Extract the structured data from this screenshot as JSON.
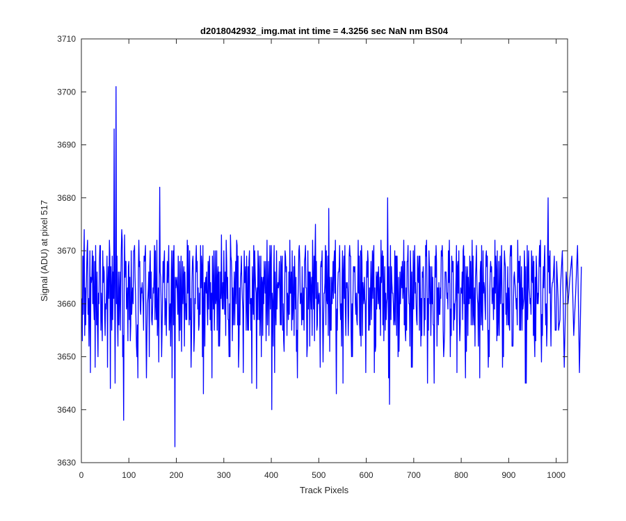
{
  "chart_data": {
    "type": "line",
    "title": "d2018042932_img.mat int time = 4.3256 sec  NaN nm BS04",
    "xlabel": "Track Pixels",
    "ylabel": "Signal (ADU) at pixel 517",
    "xlim": [
      0,
      1024
    ],
    "ylim": [
      3630,
      3710
    ],
    "x_ticks": [
      0,
      100,
      200,
      300,
      400,
      500,
      600,
      700,
      800,
      900,
      1000
    ],
    "y_ticks": [
      3630,
      3640,
      3650,
      3660,
      3670,
      3680,
      3690,
      3700,
      3710
    ],
    "grid": false,
    "legend": "none",
    "series": [
      {
        "color": "#0000ff",
        "x_start": 1,
        "x_step": 4,
        "values": [
          3661,
          3668,
          3656,
          3672,
          3659,
          3664,
          3669,
          3648,
          3666,
          3660,
          3655,
          3670,
          3658,
          3663,
          3667,
          3644,
          3669,
          3693,
          3701,
          3652,
          3666,
          3674,
          3638,
          3668,
          3663,
          3657,
          3670,
          3660,
          3665,
          3650,
          3672,
          3658,
          3662,
          3668,
          3646,
          3663,
          3670,
          3656,
          3665,
          3660,
          3658,
          3682,
          3650,
          3664,
          3661,
          3668,
          3655,
          3662,
          3670,
          3633,
          3665,
          3659,
          3663,
          3668,
          3652,
          3660,
          3671,
          3657,
          3664,
          3651,
          3668,
          3659,
          3662,
          3669,
          3643,
          3664,
          3660,
          3667,
          3655,
          3663,
          3661,
          3670,
          3652,
          3666,
          3659,
          3663,
          3672,
          3657,
          3650,
          3665,
          3660,
          3668,
          3656,
          3663,
          3669,
          3647,
          3664,
          3660,
          3668,
          3655,
          3662,
          3670,
          3644,
          3666,
          3659,
          3664,
          3668,
          3653,
          3662,
          3671,
          3640,
          3665,
          3659,
          3663,
          3668,
          3656,
          3660,
          3670,
          3654,
          3666,
          3662,
          3657,
          3669,
          3651,
          3664,
          3660,
          3667,
          3655,
          3663,
          3670,
          3652,
          3665,
          3659,
          3675,
          3656,
          3662,
          3668,
          3649,
          3664,
          3661,
          3678,
          3655,
          3663,
          3670,
          3643,
          3666,
          3660,
          3664,
          3669,
          3654,
          3662,
          3671,
          3650,
          3667,
          3660,
          3656,
          3669,
          3652,
          3664,
          3661,
          3668,
          3655,
          3663,
          3670,
          3647,
          3666,
          3660,
          3665,
          3668,
          3653,
          3662,
          3680,
          3641,
          3667,
          3660,
          3656,
          3669,
          3651,
          3664,
          3661,
          3668,
          3655,
          3663,
          3670,
          3648,
          3666,
          3660,
          3665,
          3669,
          3654,
          3662,
          3671,
          3645,
          3667,
          3660,
          3656,
          3669,
          3652,
          3664,
          3661,
          3668,
          3655,
          3663,
          3670,
          3650,
          3666,
          3660,
          3665,
          3668,
          3653,
          3662,
          3671,
          3646,
          3667,
          3660,
          3656,
          3669,
          3652,
          3664,
          3661,
          3668,
          3655,
          3663,
          3670,
          3648,
          3666,
          3660,
          3665,
          3669,
          3654,
          3662,
          3671,
          3650,
          3667,
          3660,
          3656,
          3669,
          3652,
          3664,
          3661,
          3668,
          3655,
          3663,
          3670,
          3645,
          3666,
          3660,
          3665,
          3668,
          3653,
          3662,
          3671,
          3649,
          3667,
          3660,
          3656,
          3669,
          3652,
          3664,
          3661,
          3668,
          3655,
          3663,
          3670,
          3648,
          3666,
          3660,
          3665,
          3669,
          3654,
          3662,
          3671,
          3647,
          3667
        ]
      },
      {
        "color": "#0000ff",
        "x_start": 2,
        "x_step": 4,
        "values": [
          3653,
          3674,
          3662,
          3658,
          3670,
          3665,
          3660,
          3671,
          3655,
          3668,
          3662,
          3664,
          3654,
          3669,
          3661,
          3667,
          3657,
          3664,
          3660,
          3666,
          3655,
          3672,
          3661,
          3668,
          3653,
          3665,
          3658,
          3670,
          3662,
          3656,
          3667,
          3663,
          3660,
          3669,
          3654,
          3666,
          3661,
          3659,
          3671,
          3657,
          3663,
          3666,
          3655,
          3668,
          3660,
          3664,
          3658,
          3670,
          3656,
          3665,
          3662,
          3653,
          3669,
          3660,
          3666,
          3657,
          3664,
          3661,
          3668,
          3654,
          3671,
          3663,
          3658,
          3667,
          3660,
          3665,
          3656,
          3669,
          3662,
          3659,
          3670,
          3655,
          3666,
          3661,
          3664,
          3658,
          3668,
          3657,
          3673,
          3653,
          3666,
          3660,
          3669,
          3656,
          3664,
          3662,
          3667,
          3655,
          3670,
          3661,
          3658,
          3666,
          3663,
          3657,
          3669,
          3654,
          3665,
          3660,
          3668,
          3659,
          3662,
          3671,
          3656,
          3664,
          3661,
          3667,
          3653,
          3669,
          3662,
          3658,
          3666,
          3660,
          3664,
          3655,
          3670,
          3661,
          3657,
          3668,
          3663,
          3659,
          3666,
          3654,
          3669,
          3661,
          3664,
          3658,
          3667,
          3656,
          3671,
          3660,
          3663,
          3655,
          3668,
          3662,
          3659,
          3666,
          3657,
          3670,
          3661,
          3664,
          3654,
          3669,
          3660,
          3667,
          3658,
          3663,
          3656,
          3671,
          3662,
          3660,
          3665,
          3655,
          3668,
          3661,
          3663,
          3659,
          3667,
          3654,
          3670,
          3662,
          3657,
          3666,
          3660,
          3664,
          3656,
          3669,
          3661,
          3658,
          3667,
          3663,
          3655,
          3668,
          3660,
          3665,
          3659,
          3671,
          3657,
          3664,
          3662,
          3666,
          3654,
          3669,
          3661,
          3660,
          3667,
          3656,
          3665,
          3663,
          3658,
          3670,
          3655,
          3666,
          3661,
          3664,
          3659,
          3668,
          3657,
          3671,
          3662,
          3656,
          3666,
          3660,
          3667,
          3654,
          3669,
          3663,
          3658,
          3665,
          3661,
          3664,
          3656,
          3670,
          3660,
          3667,
          3655,
          3668,
          3662,
          3659,
          3666,
          3657,
          3669,
          3661,
          3664,
          3658,
          3667,
          3655,
          3671,
          3660,
          3663,
          3656,
          3668,
          3662,
          3659,
          3666,
          3657,
          3670,
          3661,
          3664,
          3654,
          3669,
          3660,
          3667,
          3658,
          3663,
          3656,
          3671,
          3662,
          3660,
          3665,
          3655
        ]
      },
      {
        "color": "#0000ff",
        "x_start": 3,
        "x_step": 4,
        "values": [
          3669,
          3654,
          3666,
          3661,
          3647,
          3670,
          3657,
          3663,
          3650,
          3671,
          3658,
          3667,
          3660,
          3648,
          3672,
          3662,
          3666,
          3645,
          3669,
          3656,
          3664,
          3650,
          3673,
          3659,
          3667,
          3653,
          3661,
          3670,
          3657,
          3646,
          3668,
          3662,
          3655,
          3671,
          3660,
          3650,
          3666,
          3663,
          3657,
          3672,
          3649,
          3665,
          3661,
          3670,
          3654,
          3667,
          3660,
          3646,
          3671,
          3663,
          3658,
          3668,
          3651,
          3665,
          3662,
          3672,
          3656,
          3648,
          3669,
          3661,
          3666,
          3655,
          3671,
          3650,
          3664,
          3662,
          3668,
          3657,
          3646,
          3670,
          3660,
          3665,
          3652,
          3673,
          3659,
          3666,
          3661,
          3650,
          3669,
          3663,
          3656,
          3672,
          3648,
          3665,
          3661,
          3670,
          3655,
          3667,
          3660,
          3645,
          3671,
          3663,
          3657,
          3669,
          3650,
          3665,
          3662,
          3672,
          3654,
          3668,
          3660,
          3647,
          3670,
          3663,
          3656,
          3669,
          3651,
          3666,
          3661,
          3672,
          3655,
          3667,
          3659,
          3646,
          3671,
          3662,
          3657,
          3669,
          3650,
          3666,
          3663,
          3672,
          3653,
          3668,
          3660,
          3648,
          3670,
          3662,
          3656,
          3669,
          3651,
          3665,
          3661,
          3672,
          3655,
          3667,
          3660,
          3645,
          3671,
          3663,
          3658,
          3669,
          3650,
          3666,
          3662,
          3672,
          3654,
          3668,
          3660,
          3647,
          3670,
          3663,
          3657,
          3669,
          3651,
          3665,
          3661,
          3672,
          3656,
          3667,
          3660,
          3646,
          3671,
          3662,
          3657,
          3669,
          3650,
          3666,
          3663,
          3672,
          3653,
          3668,
          3660,
          3648,
          3670,
          3662,
          3656,
          3669,
          3652,
          3665,
          3661,
          3672,
          3655,
          3667,
          3660,
          3645,
          3671,
          3663,
          3658,
          3669,
          3650,
          3666,
          3662,
          3672,
          3654,
          3668,
          3660,
          3647,
          3670,
          3663,
          3657,
          3669,
          3651,
          3665,
          3661,
          3672,
          3656,
          3667,
          3660,
          3646,
          3671,
          3662,
          3657,
          3669,
          3650,
          3666,
          3663,
          3672,
          3653,
          3668,
          3660,
          3648,
          3670,
          3662,
          3656,
          3669,
          3652,
          3665,
          3661,
          3672,
          3655,
          3667,
          3660,
          3645,
          3671,
          3663,
          3658,
          3669,
          3650,
          3666,
          3662,
          3672,
          3654,
          3668,
          3660,
          3680,
          3670,
          3663
        ]
      },
      {
        "color": "#0000ff",
        "x_start": 4,
        "x_step": 4,
        "values": [
          3658,
          3663,
          3670,
          3652,
          3665,
          3660,
          3668,
          3656,
          3662,
          3671,
          3653,
          3666,
          3659,
          3664,
          3669,
          3655,
          3661,
          3667,
          3657,
          3662,
          3670,
          3654,
          3665,
          3660,
          3668,
          3656,
          3663,
          3671,
          3652,
          3666,
          3659,
          3664,
          3669,
          3655,
          3661,
          3667,
          3657,
          3662,
          3670,
          3654,
          3665,
          3660,
          3668,
          3656,
          3663,
          3671,
          3652,
          3666,
          3659,
          3664,
          3669,
          3655,
          3661,
          3667,
          3657,
          3662,
          3670,
          3654,
          3665,
          3660,
          3668,
          3656,
          3663,
          3671,
          3652,
          3666,
          3659,
          3664,
          3669,
          3655,
          3661,
          3667,
          3657,
          3662,
          3670,
          3654,
          3665,
          3660,
          3668,
          3656,
          3663,
          3671,
          3652,
          3666,
          3659,
          3664,
          3669,
          3655,
          3661,
          3667,
          3657,
          3662,
          3670,
          3654,
          3665,
          3660,
          3668,
          3656,
          3663,
          3671,
          3652,
          3666,
          3659,
          3664,
          3669,
          3655,
          3661,
          3667,
          3657,
          3662,
          3670,
          3654,
          3665,
          3660,
          3668,
          3656,
          3663,
          3671,
          3652,
          3666,
          3659,
          3664,
          3669,
          3655,
          3661,
          3667,
          3657,
          3662,
          3670,
          3654,
          3665,
          3660,
          3668,
          3656,
          3663,
          3671,
          3652,
          3666,
          3659,
          3664,
          3669,
          3655,
          3661,
          3667,
          3657,
          3662,
          3670,
          3654,
          3665,
          3660,
          3668,
          3656,
          3663,
          3671,
          3652,
          3666,
          3659,
          3664,
          3669,
          3655,
          3661,
          3667,
          3657,
          3662,
          3670,
          3654,
          3665,
          3660,
          3668,
          3656,
          3663,
          3671,
          3652,
          3666,
          3659,
          3664,
          3669,
          3655,
          3661,
          3667,
          3657,
          3662,
          3670,
          3654,
          3665,
          3660,
          3668,
          3656,
          3663,
          3671,
          3652,
          3666,
          3659,
          3664,
          3669,
          3655,
          3661,
          3667,
          3657,
          3662,
          3670,
          3654,
          3665,
          3660,
          3668,
          3656,
          3663,
          3671,
          3652,
          3666,
          3659,
          3664,
          3669,
          3655,
          3661,
          3667,
          3657,
          3662,
          3670,
          3654,
          3665,
          3660,
          3668,
          3656,
          3663,
          3671,
          3652,
          3666,
          3659,
          3664,
          3669,
          3655,
          3661,
          3667,
          3657,
          3662,
          3670,
          3654,
          3665,
          3660,
          3668,
          3656,
          3663,
          3671,
          3652,
          3666,
          3659,
          3664,
          3669,
          3655,
          3661,
          3657
        ]
      }
    ]
  }
}
